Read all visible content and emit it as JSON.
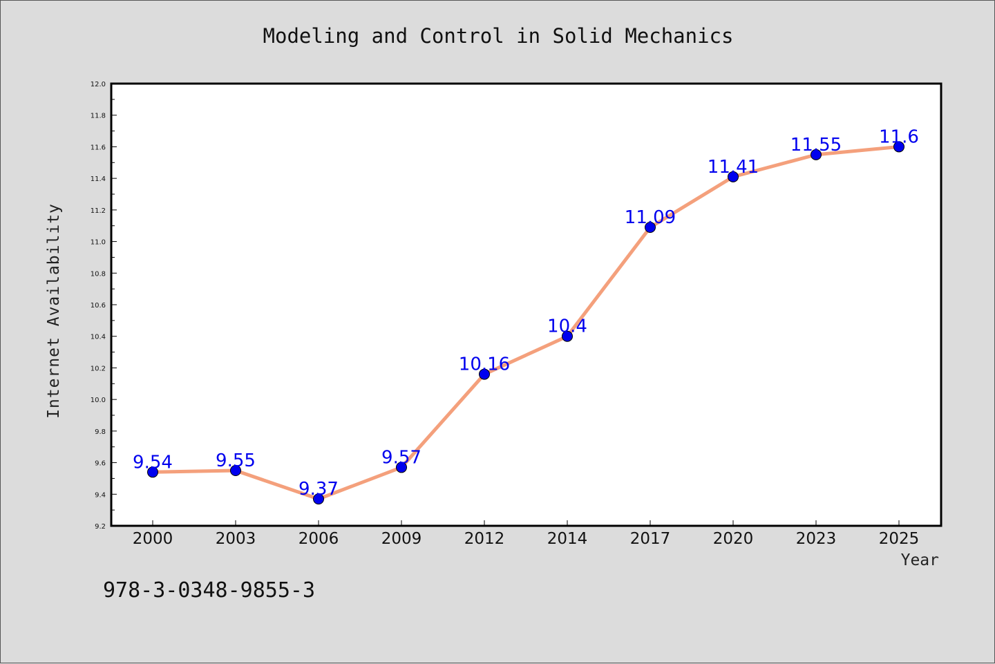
{
  "chart_data": {
    "type": "line",
    "title": "Modeling and Control in Solid Mechanics",
    "xlabel": "Year",
    "ylabel": "Internet Availability",
    "categories": [
      "2000",
      "2003",
      "2006",
      "2009",
      "2012",
      "2014",
      "2017",
      "2020",
      "2023",
      "2025"
    ],
    "series": [
      {
        "values": [
          9.54,
          9.55,
          9.37,
          9.57,
          10.16,
          10.4,
          11.09,
          11.41,
          11.55,
          11.6
        ],
        "data_labels": [
          "9.54",
          "9.55",
          "9.37",
          "9.57",
          "10.16",
          "10.4",
          "11.09",
          "11.41",
          "11.55",
          "11.6"
        ],
        "line_color": "#f4a07c",
        "marker_color": "#0000ee",
        "label_color": "#0000ee"
      }
    ],
    "ylim": [
      9.2,
      12.0
    ],
    "y_ticks": [
      "9.2",
      "9.4",
      "9.6",
      "9.8",
      "10.0",
      "10.2",
      "10.4",
      "10.6",
      "10.8",
      "11.0",
      "11.2",
      "11.4",
      "11.6",
      "11.8",
      "12.0"
    ],
    "grid": false,
    "legend": "none"
  },
  "footer": {
    "isbn": "978-3-0348-9855-3"
  },
  "colors": {
    "background": "#dcdcdc",
    "plot_background": "#ffffff",
    "axis": "#000000"
  }
}
